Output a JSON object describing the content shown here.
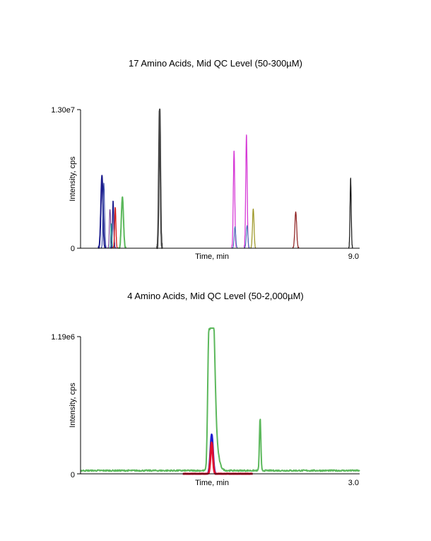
{
  "chart_data": [
    {
      "type": "line",
      "title": "17 Amino Acids, Mid QC Level (50-300µM)",
      "xlabel": "Time, min",
      "ylabel": "Intensity, cps",
      "xlim": [
        0,
        9.0
      ],
      "ylim": [
        0,
        13000000
      ],
      "x_tick_labels": {
        "end": "9.0"
      },
      "y_tick_labels": {
        "top": "1.30e7",
        "bottom": "0"
      },
      "grid": false,
      "series": [
        {
          "name": "peak-1",
          "color": "#1a1a8c",
          "peaks": [
            {
              "rt": 0.69,
              "height": 6700000,
              "width": 0.08,
              "stroke": 2.0
            }
          ]
        },
        {
          "name": "peak-2",
          "color": "#2a3a9e",
          "peaks": [
            {
              "rt": 0.75,
              "height": 6100000,
              "width": 0.06,
              "stroke": 1.0
            }
          ]
        },
        {
          "name": "peak-3",
          "color": "#6b2e8f",
          "peaks": [
            {
              "rt": 0.95,
              "height": 3700000,
              "width": 0.05,
              "stroke": 1.0
            }
          ]
        },
        {
          "name": "peak-4",
          "color": "#1a1a8c",
          "peaks": [
            {
              "rt": 1.05,
              "height": 4400000,
              "width": 0.05,
              "stroke": 1.4
            }
          ]
        },
        {
          "name": "peak-5",
          "color": "#20a090",
          "peaks": [
            {
              "rt": 0.99,
              "height": 2300000,
              "width": 0.04,
              "stroke": 1.0
            }
          ]
        },
        {
          "name": "peak-6",
          "color": "#d42020",
          "peaks": [
            {
              "rt": 1.12,
              "height": 3800000,
              "width": 0.05,
              "stroke": 1.4
            }
          ]
        },
        {
          "name": "peak-7",
          "color": "#5cb85c",
          "peaks": [
            {
              "rt": 1.35,
              "height": 4800000,
              "width": 0.08,
              "stroke": 2.0
            }
          ]
        },
        {
          "name": "peak-8",
          "color": "#444444",
          "peaks": [
            {
              "rt": 2.55,
              "height": 13000000,
              "width": 0.06,
              "stroke": 2.2
            }
          ]
        },
        {
          "name": "peak-9",
          "color": "#d63ad6",
          "peaks": [
            {
              "rt": 4.95,
              "height": 9200000,
              "width": 0.055,
              "stroke": 1.3
            },
            {
              "rt": 5.35,
              "height": 10700000,
              "width": 0.055,
              "stroke": 1.3
            }
          ]
        },
        {
          "name": "peak-10",
          "color": "#3070b0",
          "peaks": [
            {
              "rt": 4.98,
              "height": 2000000,
              "width": 0.06,
              "stroke": 1.0
            },
            {
              "rt": 5.37,
              "height": 2100000,
              "width": 0.06,
              "stroke": 1.0
            }
          ]
        },
        {
          "name": "peak-11",
          "color": "#9a9420",
          "peaks": [
            {
              "rt": 5.57,
              "height": 3700000,
              "width": 0.06,
              "stroke": 1.2
            }
          ]
        },
        {
          "name": "peak-12",
          "color": "#8b1a1a",
          "peaks": [
            {
              "rt": 6.94,
              "height": 3400000,
              "width": 0.07,
              "stroke": 1.2
            }
          ]
        },
        {
          "name": "peak-13",
          "color": "#111111",
          "peaks": [
            {
              "rt": 8.71,
              "height": 6500000,
              "width": 0.045,
              "stroke": 1.2
            }
          ]
        }
      ]
    },
    {
      "type": "line",
      "title": "4 Amino Acids, Mid QC Level (50-2,000µM)",
      "xlabel": "Time, min",
      "ylabel": "Intensity, cps",
      "xlim": [
        0,
        3.0
      ],
      "ylim": [
        0,
        1190000
      ],
      "x_tick_labels": {
        "end": "3.0"
      },
      "y_tick_labels": {
        "top": "1.19e6",
        "bottom": "0"
      },
      "grid": false,
      "series": [
        {
          "name": "trace-blue",
          "color": "#1f1fd0",
          "baseline": 0,
          "range": [
            1.1,
            1.85
          ],
          "peaks": [
            {
              "rt": 1.41,
              "height": 345000,
              "width": 0.035,
              "stroke": 2.4
            }
          ]
        },
        {
          "name": "trace-red",
          "color": "#e01030",
          "baseline": 0,
          "range": [
            1.1,
            1.85
          ],
          "peaks": [
            {
              "rt": 1.41,
              "height": 270000,
              "width": 0.03,
              "stroke": 3.0
            }
          ]
        },
        {
          "name": "trace-green",
          "color": "#5cb85c",
          "baseline": 28000,
          "range": [
            0,
            3.0
          ],
          "peaks": [
            {
              "rt": 1.38,
              "height": 1220000,
              "width": 0.03,
              "stroke": 2.0,
              "tail": 0.09
            },
            {
              "rt": 1.43,
              "height": 600000,
              "width": 0.04,
              "stroke": 2.0
            },
            {
              "rt": 1.93,
              "height": 460000,
              "width": 0.018,
              "stroke": 2.0
            }
          ]
        }
      ]
    }
  ]
}
